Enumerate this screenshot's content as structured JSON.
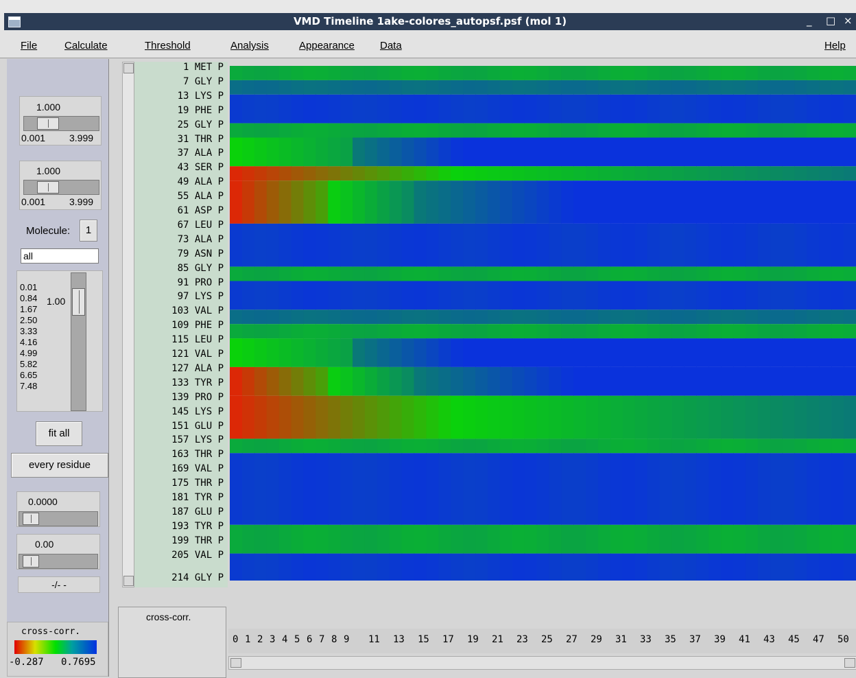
{
  "window": {
    "title": "VMD Timeline  1ake-colores_autopsf.psf (mol 1)",
    "minimize": "_",
    "maximize": "□",
    "close": "×"
  },
  "menu": {
    "file": "File",
    "calculate": "Calculate",
    "threshold": "Threshold",
    "analysis": "Analysis",
    "appearance": "Appearance",
    "data": "Data",
    "help": "Help"
  },
  "panel": {
    "scale1": {
      "value": "1.000",
      "min": "0.001",
      "max": "3.999",
      "level": 0.25
    },
    "scale2": {
      "value": "1.000",
      "min": "0.001",
      "max": "3.999",
      "level": 0.25
    },
    "molecule_label": "Molecule:",
    "molecule_value": "1",
    "selection": "all",
    "zoom_list": [
      "0.01",
      "0.84",
      "1.67",
      "2.50",
      "3.33",
      "4.16",
      "4.99",
      "5.82",
      "6.65",
      "7.48"
    ],
    "zoom_value": "1.00",
    "fit_all": "fit all",
    "every_residue": "every residue",
    "scale3": {
      "value": "0.0000",
      "level": 0.05
    },
    "scale4": {
      "value": "0.00",
      "level": 0.05
    },
    "frame_readout": "-/- -",
    "colorbar": {
      "label": "cross-corr.",
      "min": "-0.287",
      "max": "0.7695"
    }
  },
  "data_label": "cross-corr.",
  "residues": [
    "1 MET P",
    "7 GLY P",
    "13 LYS P",
    "19 PHE P",
    "25 GLY P",
    "31 THR P",
    "37 ALA P",
    "43 SER P",
    "49 ALA P",
    "55 ALA P",
    "61 ASP P",
    "67 LEU P",
    "73 ALA P",
    "79 ASN P",
    "85 GLY P",
    "91 PRO P",
    "97 LYS P",
    "103 VAL P",
    "109 PHE P",
    "115 LEU P",
    "121 VAL P",
    "127 ALA P",
    "133 TYR P",
    "139 PRO P",
    "145 LYS P",
    "151 GLU P",
    "157 LYS P",
    "163 THR P",
    "169 VAL P",
    "175 THR P",
    "181 TYR P",
    "187 GLU P",
    "193 TYR P",
    "199 THR P",
    "205 VAL P",
    "214 GLY P"
  ],
  "frame_ticks": [
    "0",
    "1",
    "2",
    "3",
    "4",
    "5",
    "6",
    "7",
    "8",
    "9",
    "11",
    "13",
    "15",
    "17",
    "19",
    "21",
    "23",
    "25",
    "27",
    "29",
    "31",
    "33",
    "35",
    "37",
    "39",
    "41",
    "43",
    "45",
    "47",
    "50"
  ],
  "colors": {
    "blue": "#0a32dc",
    "teal": "#0a7878",
    "green": "#0ad20a",
    "red": "#dc2806",
    "titlebar": "#2b3c55"
  },
  "heatmap_bands": [
    {
      "residue": "1 MET P",
      "profile": "green"
    },
    {
      "residue": "7 GLY P",
      "profile": "teal"
    },
    {
      "residue": "13 LYS P",
      "profile": "blue"
    },
    {
      "residue": "25 GLY P",
      "profile": "green"
    },
    {
      "residue": "31 THR P",
      "profile": "green-to-blue"
    },
    {
      "residue": "43 SER P",
      "profile": "red-to-green"
    },
    {
      "residue": "49 ALA P",
      "profile": "red-to-blue"
    },
    {
      "residue": "61 ASP P",
      "profile": "red-to-blue"
    },
    {
      "residue": "67 LEU P",
      "profile": "blue"
    },
    {
      "residue": "85 GLY P",
      "profile": "green"
    },
    {
      "residue": "91 PRO P",
      "profile": "blue"
    },
    {
      "residue": "103 VAL P",
      "profile": "teal"
    },
    {
      "residue": "109 PHE P",
      "profile": "green"
    },
    {
      "residue": "115 LEU P",
      "profile": "green-to-blue"
    },
    {
      "residue": "127 ALA P",
      "profile": "red-to-blue"
    },
    {
      "residue": "139 PRO P",
      "profile": "red-to-green"
    },
    {
      "residue": "157 LYS P",
      "profile": "green"
    },
    {
      "residue": "163 THR P",
      "profile": "blue"
    },
    {
      "residue": "193 TYR P",
      "profile": "green"
    },
    {
      "residue": "205 VAL P",
      "profile": "blue"
    }
  ]
}
